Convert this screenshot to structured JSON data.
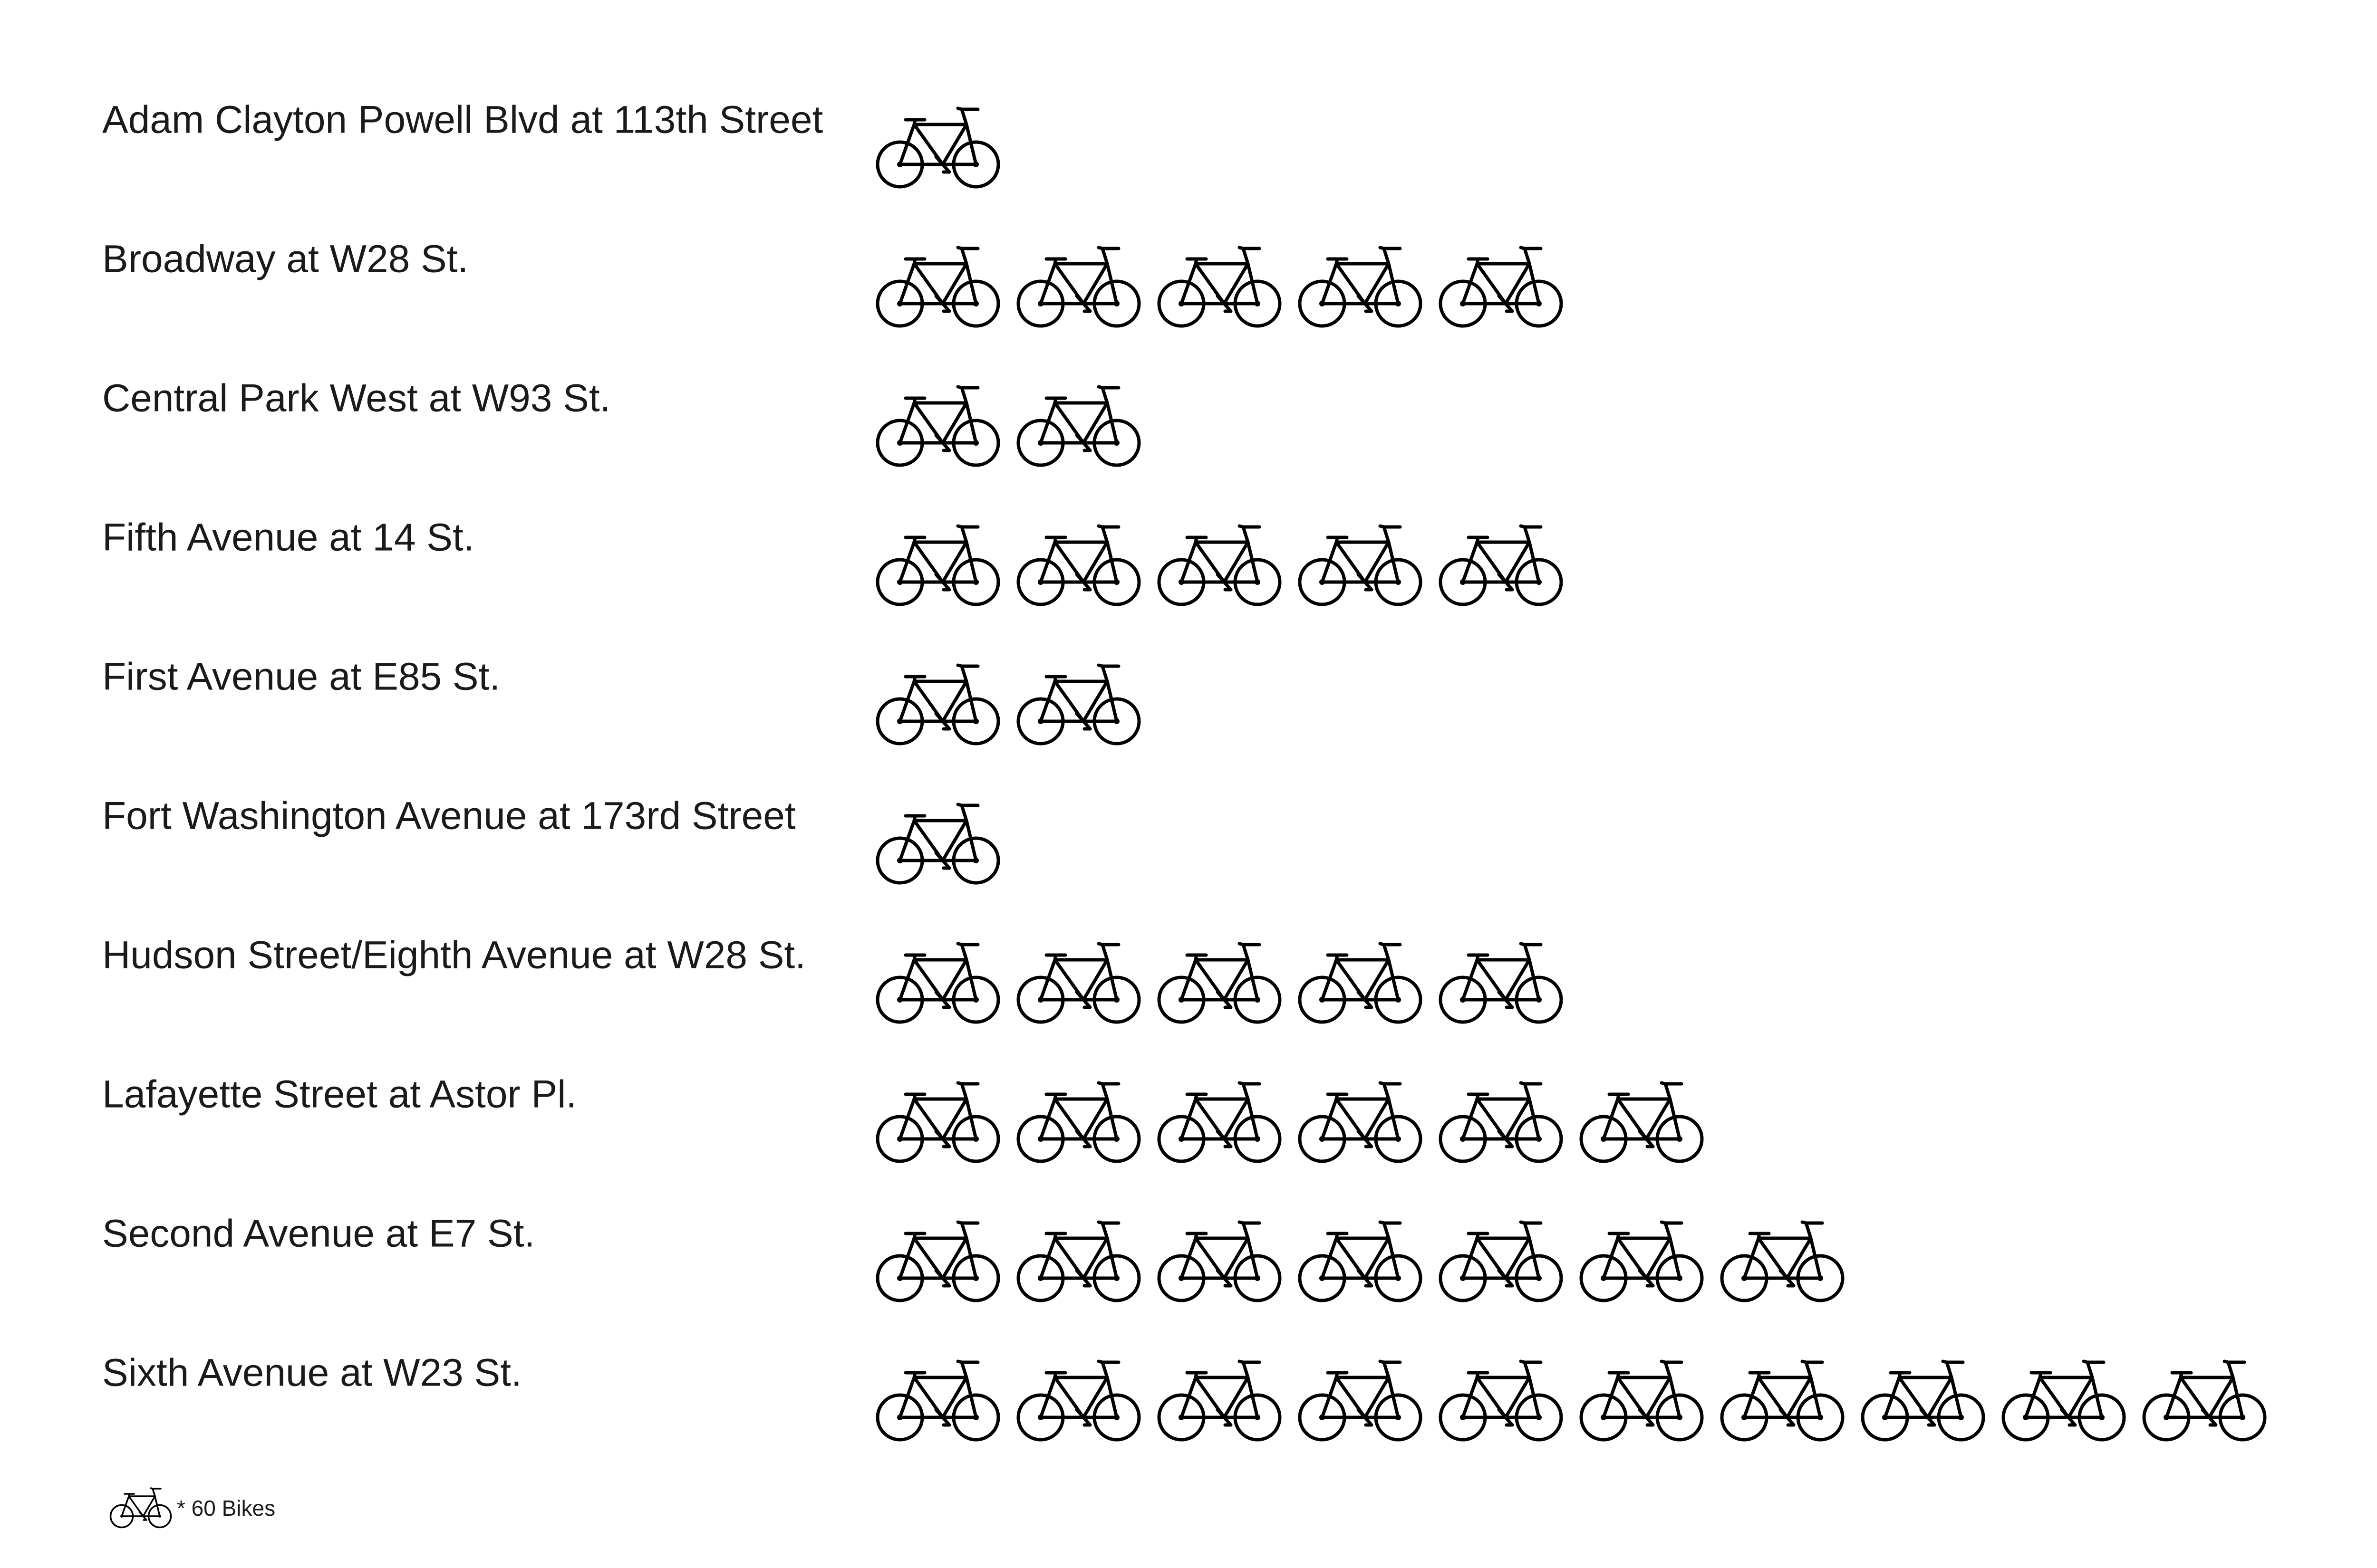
{
  "chart_data": {
    "type": "pictograph",
    "title": "",
    "icon": "bicycle-icon",
    "unit_value": 60,
    "categories": [
      "Adam Clayton Powell Blvd at 113th Street",
      "Broadway at W28 St.",
      "Central Park West at W93 St.",
      "Fifth Avenue at 14 St.",
      "First Avenue at E85 St.",
      "Fort Washington Avenue at 173rd Street",
      "Hudson Street/Eighth Avenue at W28 St.",
      "Lafayette Street at Astor Pl.",
      "Second Avenue at E7 St.",
      "Sixth Avenue at W23 St."
    ],
    "icon_counts": [
      1,
      5,
      2,
      5,
      2,
      1,
      5,
      6,
      7,
      10
    ],
    "values": [
      60,
      300,
      120,
      300,
      120,
      60,
      300,
      360,
      420,
      600
    ],
    "legend": {
      "label": "* 60 Bikes"
    },
    "colors": {
      "icon": "#000000",
      "text": "#1a1a1a",
      "background": "#ffffff"
    }
  }
}
